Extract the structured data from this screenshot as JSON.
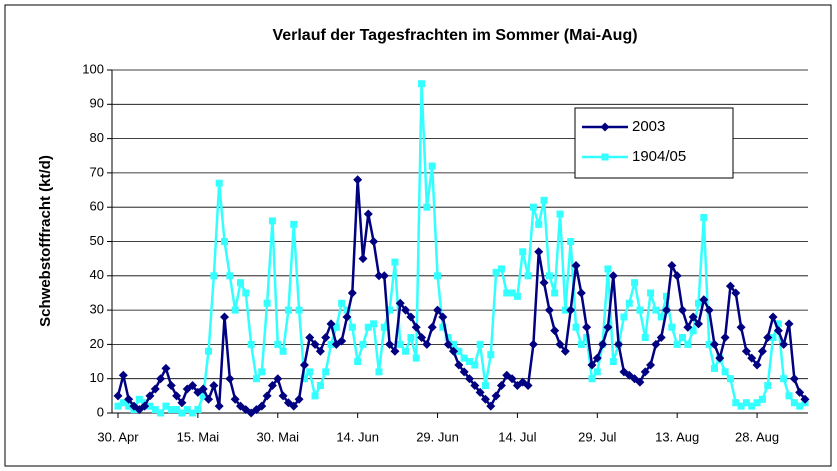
{
  "chart_data": {
    "type": "line",
    "title": "Verlauf der Tagesfrachten im Sommer (Mai-Aug)",
    "y_label": "Schwebstofffracht (kt/d)",
    "categories": [
      "30. Apr",
      null,
      null,
      null,
      null,
      null,
      null,
      null,
      null,
      null,
      null,
      null,
      null,
      null,
      null,
      "15. Mai",
      null,
      null,
      null,
      null,
      null,
      null,
      null,
      null,
      null,
      null,
      null,
      null,
      null,
      null,
      "30. Mai",
      null,
      null,
      null,
      null,
      null,
      null,
      null,
      null,
      null,
      null,
      null,
      null,
      null,
      null,
      "14. Jun",
      null,
      null,
      null,
      null,
      null,
      null,
      null,
      null,
      null,
      null,
      null,
      null,
      null,
      null,
      "29. Jun",
      null,
      null,
      null,
      null,
      null,
      null,
      null,
      null,
      null,
      null,
      null,
      null,
      null,
      null,
      "14. Jul",
      null,
      null,
      null,
      null,
      null,
      null,
      null,
      null,
      null,
      null,
      null,
      null,
      null,
      null,
      "29. Jul",
      null,
      null,
      null,
      null,
      null,
      null,
      null,
      null,
      null,
      null,
      null,
      null,
      null,
      null,
      "13. Aug",
      null,
      null,
      null,
      null,
      null,
      null,
      null,
      null,
      null,
      null,
      null,
      null,
      null,
      null,
      "28. Aug",
      null,
      null,
      null,
      null,
      null,
      null,
      null,
      null,
      null
    ],
    "series": [
      {
        "name": "2003",
        "color": "#000080",
        "marker": "diamond",
        "values": [
          5,
          11,
          4,
          2,
          1,
          2,
          5,
          7,
          10,
          13,
          8,
          5,
          3,
          7,
          8,
          6,
          7,
          4,
          8,
          2,
          28,
          10,
          4,
          2,
          1,
          0,
          1,
          2,
          5,
          8,
          10,
          5,
          3,
          2,
          4,
          14,
          22,
          20,
          18,
          22,
          26,
          20,
          21,
          28,
          35,
          68,
          45,
          58,
          50,
          40,
          40,
          20,
          18,
          32,
          30,
          28,
          25,
          22,
          20,
          25,
          30,
          28,
          20,
          18,
          14,
          12,
          10,
          8,
          6,
          4,
          2,
          5,
          8,
          11,
          10,
          8,
          9,
          8,
          20,
          47,
          38,
          30,
          24,
          20,
          18,
          30,
          43,
          35,
          25,
          14,
          16,
          20,
          25,
          40,
          20,
          12,
          11,
          10,
          9,
          12,
          14,
          20,
          22,
          30,
          43,
          40,
          30,
          25,
          28,
          26,
          33,
          30,
          20,
          16,
          22,
          37,
          35,
          25,
          18,
          16,
          14,
          18,
          22,
          28,
          24,
          20,
          26,
          10,
          6,
          4
        ]
      },
      {
        "name": "1904/05",
        "color": "#33ffff",
        "marker": "square",
        "values": [
          2,
          3,
          2,
          1,
          4,
          3,
          2,
          1,
          0,
          2,
          1,
          1,
          0,
          1,
          0,
          1,
          5,
          18,
          40,
          67,
          50,
          40,
          30,
          38,
          35,
          20,
          10,
          12,
          32,
          56,
          20,
          18,
          30,
          55,
          30,
          10,
          12,
          5,
          8,
          12,
          20,
          25,
          32,
          30,
          25,
          15,
          20,
          25,
          26,
          12,
          25,
          30,
          44,
          20,
          18,
          22,
          16,
          96,
          60,
          72,
          40,
          25,
          22,
          20,
          18,
          16,
          15,
          14,
          20,
          8,
          17,
          41,
          42,
          35,
          35,
          34,
          47,
          40,
          60,
          55,
          62,
          40,
          35,
          58,
          30,
          50,
          25,
          20,
          22,
          10,
          12,
          20,
          42,
          15,
          20,
          28,
          32,
          38,
          30,
          22,
          35,
          30,
          28,
          34,
          25,
          20,
          22,
          20,
          24,
          32,
          57,
          20,
          13,
          16,
          12,
          10,
          3,
          2,
          3,
          2,
          3,
          4,
          8,
          22,
          26,
          10,
          5,
          3,
          2,
          3
        ]
      }
    ],
    "ylim": [
      0,
      100
    ],
    "yticks": [
      0,
      10,
      20,
      30,
      40,
      50,
      60,
      70,
      80,
      90,
      100
    ],
    "grid": true
  }
}
